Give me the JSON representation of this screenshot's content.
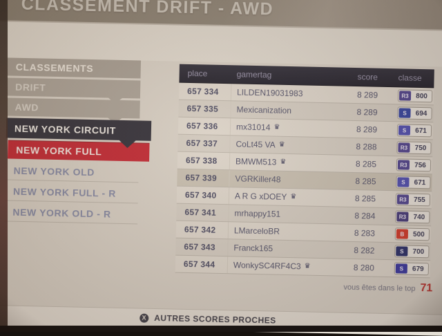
{
  "title": "CLASSEMENT DRIFT - AWD",
  "sidebar": {
    "items": [
      {
        "label": "CLASSEMENTS",
        "variant": "header"
      },
      {
        "label": "DRIFT",
        "variant": "gray"
      },
      {
        "label": "AWD",
        "variant": "gray"
      },
      {
        "label": "NEW YORK CIRCUIT",
        "variant": "dark"
      },
      {
        "label": "NEW YORK FULL",
        "variant": "red"
      },
      {
        "label": "NEW YORK OLD",
        "variant": "plain"
      },
      {
        "label": "NEW YORK FULL - R",
        "variant": "plain"
      },
      {
        "label": "NEW YORK OLD - R",
        "variant": "plain"
      }
    ]
  },
  "table": {
    "columns": [
      "place",
      "gamertag",
      "score",
      "classe"
    ],
    "rows": [
      {
        "place": "657 334",
        "gamertag": "LILDEN19031983",
        "crown": false,
        "score": "8 289",
        "class": "R3",
        "pi": "800",
        "class_color": "#4a3f8c",
        "highlight": false
      },
      {
        "place": "657 335",
        "gamertag": "Mexicanization",
        "crown": false,
        "score": "8 289",
        "class": "S",
        "pi": "694",
        "class_color": "#2e3f9e",
        "highlight": false
      },
      {
        "place": "657 336",
        "gamertag": "mx31014",
        "crown": true,
        "score": "8 289",
        "class": "S",
        "pi": "671",
        "class_color": "#4a4ab0",
        "highlight": false
      },
      {
        "place": "657 337",
        "gamertag": "CoLt45 VA",
        "crown": true,
        "score": "8 288",
        "class": "R3",
        "pi": "750",
        "class_color": "#4a3f8c",
        "highlight": false
      },
      {
        "place": "657 338",
        "gamertag": "BMWM513",
        "crown": true,
        "score": "8 285",
        "class": "R3",
        "pi": "756",
        "class_color": "#4a3f8c",
        "highlight": false
      },
      {
        "place": "657 339",
        "gamertag": "VGRKiller48",
        "crown": false,
        "score": "8 285",
        "class": "S",
        "pi": "671",
        "class_color": "#4a4ab0",
        "highlight": true
      },
      {
        "place": "657 340",
        "gamertag": "A R G xDOEY",
        "crown": true,
        "score": "8 285",
        "class": "R3",
        "pi": "755",
        "class_color": "#4a3f8c",
        "highlight": false
      },
      {
        "place": "657 341",
        "gamertag": "mrhappy151",
        "crown": false,
        "score": "8 284",
        "class": "R3",
        "pi": "740",
        "class_color": "#3f3577",
        "highlight": false
      },
      {
        "place": "657 342",
        "gamertag": "LMarceloBR",
        "crown": false,
        "score": "8 283",
        "class": "B",
        "pi": "500",
        "class_color": "#d03424",
        "highlight": false
      },
      {
        "place": "657 343",
        "gamertag": "Franck165",
        "crown": false,
        "score": "8 282",
        "class": "S",
        "pi": "700",
        "class_color": "#232a66",
        "highlight": false
      },
      {
        "place": "657 344",
        "gamertag": "WonkySC4RF4C3",
        "crown": true,
        "score": "8 280",
        "class": "S",
        "pi": "679",
        "class_color": "#33339e",
        "highlight": false
      }
    ]
  },
  "footer": {
    "label": "vous êtes dans le top",
    "value": "71"
  },
  "bottom_bar": {
    "label": "AUTRES SCORES PROCHES",
    "icon": "x"
  },
  "colors": {
    "accent_red": "#c0222e",
    "selected_dark": "#2b2b35",
    "table_header_bg": "#1c1c27",
    "class_r3": "#4a3f8c",
    "class_s": "#2e3f9e",
    "class_b": "#d03424"
  }
}
